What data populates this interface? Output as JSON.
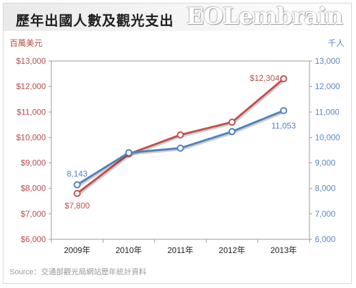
{
  "header": {
    "title": "歷年出國人數及觀光支出",
    "watermark": "EOLembrain"
  },
  "source": "Source：交通部觀光局網站歷年統計資料",
  "colors": {
    "left_series": "#c0504d",
    "right_series": "#4f81bd",
    "left_axis_text": "#b94a48",
    "right_axis_text": "#5b86c5"
  },
  "chart_data": {
    "type": "line",
    "categories": [
      "2009年",
      "2010年",
      "2011年",
      "2012年",
      "2013年"
    ],
    "left_axis": {
      "unit_label": "百萬美元",
      "ylim": [
        6000,
        13000
      ],
      "ticks": [
        "$6,000",
        "$7,000",
        "$8,000",
        "$9,000",
        "$10,000",
        "$11,000",
        "$12,000",
        "$13,000"
      ]
    },
    "right_axis": {
      "unit_label": "千人",
      "ylim": [
        6000,
        13000
      ],
      "ticks": [
        "6,000",
        "7,000",
        "8,000",
        "9,000",
        "10,000",
        "11,000",
        "12,000",
        "13,000"
      ]
    },
    "series": [
      {
        "axis": "left",
        "color": "#c0504d",
        "values": [
          7800,
          9350,
          10100,
          10600,
          12304
        ],
        "data_labels": [
          {
            "index": 0,
            "text": "$7,800"
          },
          {
            "index": 4,
            "text": "$12,304"
          }
        ]
      },
      {
        "axis": "right",
        "color": "#4f81bd",
        "values": [
          8143,
          9400,
          9580,
          10230,
          11053
        ],
        "data_labels": [
          {
            "index": 0,
            "text": "8,143"
          },
          {
            "index": 4,
            "text": "11,053"
          }
        ]
      }
    ],
    "grid": false
  }
}
